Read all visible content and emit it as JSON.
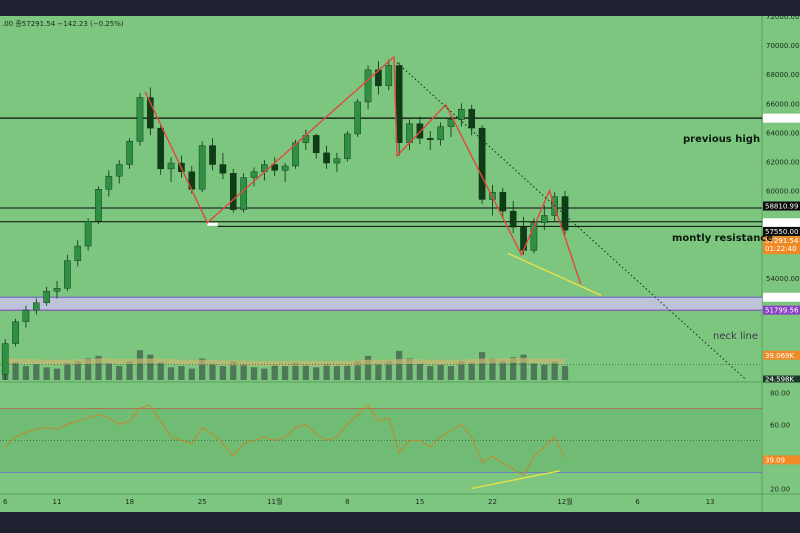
{
  "header": {
    "text": ".00  종57291.54  −142.23 (−0.25%)"
  },
  "colors": {
    "background": "#7cc67f",
    "pattern_line": "#e0493b",
    "trend_line": "#e6e04a",
    "level_line": "#0b0b0b",
    "neck_band": "#c9c3e6",
    "volume_bar": "#4a6f55",
    "volume_ma": "#c9b870",
    "rsi_line": "#c2882a",
    "rsi_band": "#6bb56e",
    "price_tag_orange": "#f08a24",
    "price_tag_purple": "#8a3fc4"
  },
  "annotations": {
    "previous_high": "previous high",
    "monthly_resistance": "montly resistance",
    "neck_line": "neck line"
  },
  "chart_data": {
    "type": "candlestick",
    "price_axis": {
      "ticks": [
        "72000.00",
        "70000.00",
        "68000.00",
        "66000.00",
        "64000.00",
        "62000.00",
        "60000.00",
        "56000.00",
        "54000.00"
      ],
      "tick_values": [
        72000,
        70000,
        68000,
        66000,
        64000,
        62000,
        60000,
        56000,
        54000
      ],
      "ylim": [
        47000,
        72000
      ]
    },
    "x_ticks": [
      "6",
      "11",
      "18",
      "25",
      "11월",
      "8",
      "15",
      "22",
      "12월",
      "6",
      "13"
    ],
    "x_tick_index": [
      0,
      5,
      12,
      19,
      26,
      33,
      40,
      47,
      54,
      61,
      68
    ],
    "x_range": [
      -0.5,
      73
    ],
    "ohlc": [
      [
        47400,
        49800,
        47000,
        49500
      ],
      [
        49500,
        51200,
        49300,
        51000
      ],
      [
        51000,
        52100,
        50600,
        51800
      ],
      [
        51800,
        52600,
        51500,
        52300
      ],
      [
        52300,
        53400,
        52100,
        53100
      ],
      [
        53100,
        53800,
        52600,
        53300
      ],
      [
        53300,
        55600,
        53100,
        55200
      ],
      [
        55200,
        56600,
        54800,
        56200
      ],
      [
        56200,
        58100,
        55900,
        57900
      ],
      [
        57900,
        60300,
        57700,
        60100
      ],
      [
        60100,
        61400,
        59600,
        61000
      ],
      [
        61000,
        62100,
        60500,
        61800
      ],
      [
        61800,
        63600,
        61500,
        63400
      ],
      [
        63400,
        66700,
        63100,
        66400
      ],
      [
        66400,
        67100,
        63800,
        64300
      ],
      [
        64300,
        64600,
        61100,
        61500
      ],
      [
        61500,
        62300,
        60600,
        61900
      ],
      [
        61900,
        62400,
        60900,
        61300
      ],
      [
        61300,
        61700,
        59800,
        60100
      ],
      [
        60100,
        63400,
        59900,
        63100
      ],
      [
        63100,
        63600,
        61400,
        61800
      ],
      [
        61800,
        62600,
        60800,
        61200
      ],
      [
        61200,
        61500,
        58500,
        58700
      ],
      [
        58700,
        61200,
        58500,
        60900
      ],
      [
        60900,
        61600,
        60300,
        61300
      ],
      [
        61300,
        62100,
        60700,
        61800
      ],
      [
        61800,
        62300,
        61000,
        61400
      ],
      [
        61400,
        61900,
        60600,
        61700
      ],
      [
        61700,
        63500,
        61500,
        63300
      ],
      [
        63300,
        64200,
        62800,
        63800
      ],
      [
        63800,
        63900,
        62200,
        62600
      ],
      [
        62600,
        63100,
        61500,
        61900
      ],
      [
        61900,
        62600,
        61300,
        62200
      ],
      [
        62200,
        64100,
        62000,
        63900
      ],
      [
        63900,
        66300,
        63700,
        66100
      ],
      [
        66100,
        68600,
        65600,
        68300
      ],
      [
        68300,
        68900,
        66600,
        67200
      ],
      [
        67200,
        69000,
        66900,
        68600
      ],
      [
        68600,
        68800,
        62400,
        63300
      ],
      [
        63300,
        64900,
        62800,
        64600
      ],
      [
        64600,
        65100,
        63200,
        63600
      ],
      [
        63600,
        64100,
        62800,
        63500
      ],
      [
        63500,
        64700,
        63100,
        64400
      ],
      [
        64400,
        65100,
        63700,
        64900
      ],
      [
        64900,
        66000,
        64400,
        65600
      ],
      [
        65600,
        65900,
        63800,
        64300
      ],
      [
        64300,
        64500,
        59100,
        59400
      ],
      [
        59400,
        60400,
        58300,
        59900
      ],
      [
        59900,
        60200,
        58200,
        58600
      ],
      [
        58600,
        59300,
        57100,
        57500
      ],
      [
        57500,
        58200,
        55600,
        55900
      ],
      [
        55900,
        58100,
        55700,
        57800
      ],
      [
        57800,
        59000,
        57300,
        58300
      ],
      [
        58300,
        59900,
        57900,
        59600
      ],
      [
        59600,
        60000,
        57000,
        57291.54
      ]
    ],
    "levels": [
      {
        "name": "previous high",
        "value": 64986.11,
        "label": "64986.11"
      },
      {
        "name": "resistance upper",
        "value": 58810.99,
        "label": "58810.99"
      },
      {
        "name": "resistance mid",
        "value": 57865.0,
        "label": "57865.00"
      },
      {
        "name": "resistance lower",
        "value": 57550.0,
        "label": "57550.00"
      },
      {
        "name": "neck line upper",
        "value": 52683.98,
        "label": "52683.98"
      },
      {
        "name": "neck line lower",
        "value": 51799.56,
        "label": "51799.56"
      }
    ],
    "last_price": {
      "value": 57291.54,
      "label": "57291.54",
      "countdown": "01:22:40"
    },
    "pattern_lines": [
      [
        [
          13.5,
          66800
        ],
        [
          19.5,
          57800
        ],
        [
          37.5,
          69200
        ],
        [
          37.8,
          62400
        ],
        [
          42.5,
          65900
        ],
        [
          49.8,
          55600
        ],
        [
          52.5,
          60000
        ],
        [
          55.5,
          53600
        ]
      ]
    ],
    "trend_lines": [
      {
        "kind": "support",
        "points": [
          [
            48.5,
            55700
          ],
          [
            57.5,
            52800
          ]
        ]
      },
      {
        "kind": "dotted",
        "points": [
          [
            37.8,
            68800
          ],
          [
            71.5,
            47000
          ]
        ]
      }
    ],
    "volume": {
      "ticks": [
        "39.069K",
        "24.598K"
      ],
      "ylim": [
        0,
        60
      ],
      "values": [
        48,
        28,
        22,
        25,
        20,
        18,
        27,
        30,
        34,
        38,
        26,
        22,
        30,
        47,
        40,
        28,
        20,
        22,
        18,
        34,
        26,
        22,
        30,
        25,
        20,
        18,
        24,
        22,
        28,
        24,
        20,
        26,
        22,
        24,
        30,
        38,
        26,
        30,
        46,
        34,
        26,
        22,
        24,
        22,
        30,
        28,
        44,
        34,
        30,
        36,
        40,
        26,
        24,
        30,
        22
      ],
      "ma": [
        30,
        30,
        29,
        29,
        28,
        28,
        28,
        29,
        29,
        30,
        30,
        29,
        29,
        30,
        30,
        30,
        29,
        28,
        28,
        28,
        28,
        27,
        27,
        27,
        26,
        26,
        26,
        26,
        26,
        26,
        26,
        26,
        26,
        26,
        27,
        28,
        28,
        28,
        29,
        29,
        29,
        28,
        28,
        28,
        28,
        29,
        30,
        30,
        30,
        31,
        31,
        30,
        30,
        30,
        29
      ]
    },
    "rsi": {
      "ticks": [
        "80.00",
        "60.00",
        "20.00"
      ],
      "tick_values": [
        80,
        60,
        20
      ],
      "last_label": "39.09",
      "ylim": [
        14,
        84
      ],
      "band_upper": 70,
      "band_lower": 30,
      "mid": 50,
      "values": [
        46,
        52,
        55,
        57,
        58,
        57,
        60,
        62,
        64,
        66,
        64,
        60,
        62,
        70,
        72,
        62,
        52,
        50,
        48,
        58,
        54,
        48,
        40,
        48,
        50,
        52,
        50,
        52,
        58,
        60,
        54,
        50,
        52,
        60,
        66,
        72,
        62,
        64,
        42,
        50,
        50,
        46,
        52,
        56,
        60,
        52,
        36,
        40,
        36,
        32,
        28,
        40,
        46,
        52,
        39.09
      ],
      "trend_line": [
        [
          45,
          20
        ],
        [
          53.5,
          31
        ]
      ]
    }
  }
}
